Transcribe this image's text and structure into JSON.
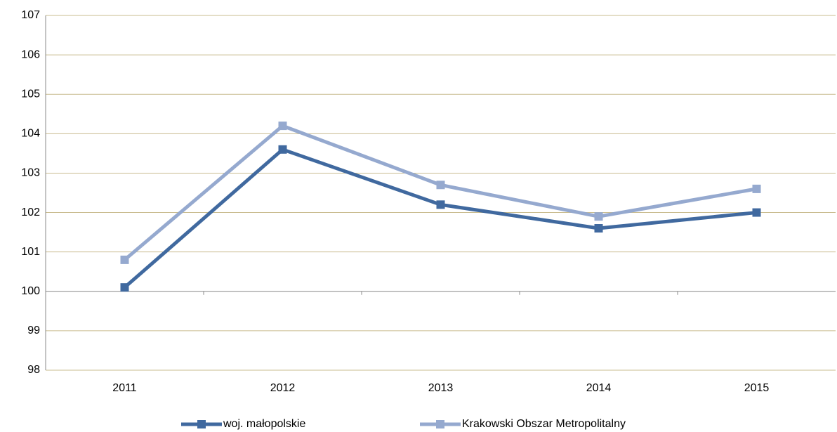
{
  "chart_data": {
    "type": "line",
    "categories": [
      "2011",
      "2012",
      "2013",
      "2014",
      "2015"
    ],
    "series": [
      {
        "name": "woj. małopolskie",
        "color": "#40699f",
        "values": [
          100.1,
          103.6,
          102.2,
          101.6,
          102.0
        ]
      },
      {
        "name": "Krakowski Obszar Metropolitalny",
        "color": "#95a9cf",
        "values": [
          100.8,
          104.2,
          102.7,
          101.9,
          102.6
        ]
      }
    ],
    "ylim": [
      98,
      107
    ],
    "yticks": [
      98,
      99,
      100,
      101,
      102,
      103,
      104,
      105,
      106,
      107
    ],
    "grid": true,
    "axis_crosses": 100,
    "legend": "bottom"
  }
}
